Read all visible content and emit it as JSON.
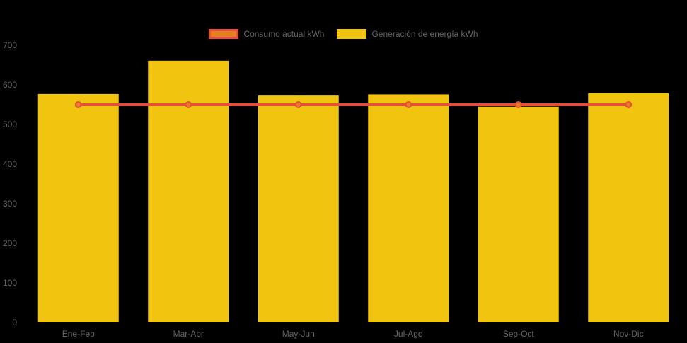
{
  "background": "#000000",
  "legend": {
    "items": [
      {
        "label": "Consumo actual kWh",
        "swatch_fill": "#E67E22",
        "swatch_border": "#E74C3C"
      },
      {
        "label": "Generación de energía kWh",
        "swatch_fill": "#F1C40F",
        "swatch_border": "#F1C40F"
      }
    ]
  },
  "chart_data": {
    "type": "bar",
    "title": "",
    "xlabel": "",
    "ylabel": "",
    "categories": [
      "Ene-Feb",
      "Mar-Abr",
      "May-Jun",
      "Jul-Ago",
      "Sep-Oct",
      "Nov-Dic"
    ],
    "series": [
      {
        "name": "Consumo actual kWh",
        "type": "line",
        "line_color": "#E74C3C",
        "point_fill": "#E67E22",
        "point_border": "#E74C3C",
        "values": [
          550,
          550,
          550,
          550,
          550,
          550
        ]
      },
      {
        "name": "Generación de energía kWh",
        "type": "bar",
        "bar_color": "#F1C40F",
        "values": [
          577,
          661,
          573,
          576,
          545,
          579
        ]
      }
    ],
    "ylim": [
      0,
      700
    ],
    "yticks": [
      0,
      100,
      200,
      300,
      400,
      500,
      600,
      700
    ],
    "grid": false,
    "legend_position": "top",
    "axis_text_color": "#666666"
  }
}
